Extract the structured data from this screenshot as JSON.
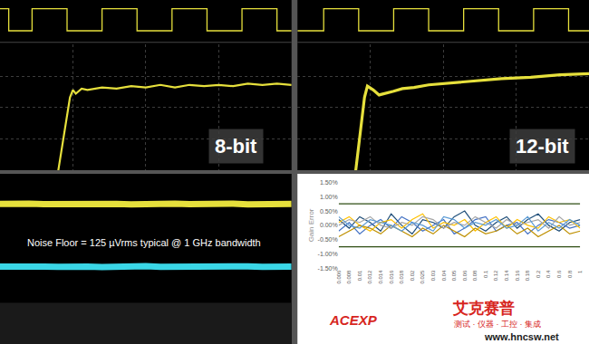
{
  "chart_data": [
    {
      "type": "line",
      "x": [
        0,
        0.3,
        1.1,
        2.3,
        3.5,
        4.7,
        5.9,
        7.1,
        8.3,
        9.5,
        10
      ],
      "series": [
        {
          "color": "#e6e03c",
          "line_style": "step",
          "values": [
            1,
            0,
            1,
            0,
            1,
            0,
            1,
            0,
            1,
            0,
            0
          ]
        }
      ],
      "xlim": [
        0,
        10
      ],
      "ylim": [
        -0.4,
        1.4
      ],
      "grid": false,
      "tick_labels": false
    },
    {
      "type": "line",
      "x": [
        2.0,
        2.1,
        2.2,
        2.3,
        2.4,
        2.5,
        2.6,
        2.8,
        3.0,
        3.5,
        4.0,
        4.5,
        5.0,
        5.5,
        6.0,
        6.5,
        7.0,
        7.5,
        8.0,
        8.5,
        9.0,
        9.5,
        10.0
      ],
      "series": [
        {
          "color": "#e6e03c",
          "values": [
            0,
            1.5,
            3.0,
            4.5,
            5.8,
            6.4,
            6.1,
            6.5,
            6.4,
            6.6,
            6.5,
            6.7,
            6.6,
            6.8,
            6.6,
            6.8,
            6.7,
            6.8,
            6.7,
            6.9,
            6.8,
            6.9,
            6.8
          ]
        }
      ],
      "xlim": [
        0,
        10
      ],
      "ylim": [
        0,
        10
      ],
      "xticks": [
        0,
        2.5,
        5,
        7.5,
        10
      ],
      "yticks": [
        0,
        2.5,
        5,
        7.5,
        10
      ],
      "grid": true,
      "tick_labels": false,
      "annotations": [
        "8-bit"
      ]
    },
    {
      "type": "line",
      "x": [
        0,
        0.9,
        2.1,
        3.3,
        4.5,
        5.7,
        6.9,
        8.1,
        9.3,
        10
      ],
      "series": [
        {
          "color": "#e6e03c",
          "line_style": "step",
          "values": [
            0,
            1,
            0,
            1,
            0,
            1,
            0,
            1,
            0,
            0
          ]
        }
      ],
      "xlim": [
        0,
        10
      ],
      "ylim": [
        -0.4,
        1.4
      ],
      "grid": false,
      "tick_labels": false
    },
    {
      "type": "line",
      "x": [
        2.0,
        2.1,
        2.2,
        2.3,
        2.4,
        2.6,
        2.8,
        3.0,
        3.3,
        3.6,
        4.0,
        4.5,
        5.0,
        5.5,
        6.0,
        7.0,
        8.0,
        9.0,
        10.0
      ],
      "series": [
        {
          "color": "#e6e03c",
          "values": [
            0,
            2.0,
            4.0,
            5.8,
            6.7,
            6.4,
            6.0,
            6.1,
            6.3,
            6.5,
            6.6,
            6.8,
            6.9,
            7.0,
            7.1,
            7.3,
            7.4,
            7.6,
            7.7
          ]
        }
      ],
      "xlim": [
        0,
        10
      ],
      "ylim": [
        0,
        10
      ],
      "xticks": [
        0,
        2.5,
        5,
        7.5,
        10
      ],
      "yticks": [
        0,
        2.5,
        5,
        7.5,
        10
      ],
      "grid": true,
      "tick_labels": false,
      "annotations": [
        "12-bit"
      ]
    },
    {
      "type": "line",
      "x": [
        0,
        0.5,
        1,
        1.5,
        2,
        2.5,
        3,
        3.5,
        4,
        4.5,
        5,
        5.5,
        6,
        6.5,
        7,
        7.5,
        8,
        8.5,
        9,
        9.5,
        10
      ],
      "series": [
        {
          "color": "#e6e03c",
          "values": [
            7.6,
            7.55,
            7.62,
            7.58,
            7.6,
            7.57,
            7.63,
            7.59,
            7.6,
            7.56,
            7.61,
            7.58,
            7.62,
            7.57,
            7.6,
            7.59,
            7.61,
            7.56,
            7.6,
            7.58,
            7.6
          ]
        },
        {
          "color": "#3ad6e6",
          "values": [
            2.6,
            2.63,
            2.57,
            2.61,
            2.58,
            2.62,
            2.6,
            2.56,
            2.61,
            2.59,
            2.63,
            2.58,
            2.6,
            2.62,
            2.57,
            2.61,
            2.59,
            2.62,
            2.58,
            2.6,
            2.61
          ]
        }
      ],
      "xlim": [
        0,
        10
      ],
      "ylim": [
        0,
        10
      ],
      "grid": false,
      "tick_labels": false,
      "annotations": [
        "Noise Floor = 125 µVrms typical @ 1 GHz bandwidth"
      ]
    },
    {
      "type": "line",
      "ylabel": "Gain Error",
      "categories": [
        "0.006",
        "0.008",
        "0.01",
        "0.012",
        "0.014",
        "0.016",
        "0.018",
        "0.02",
        "0.025",
        "0.03",
        "0.04",
        "0.05",
        "0.06",
        "0.08",
        "0.1",
        "0.12",
        "0.14",
        "0.16",
        "0.18",
        "0.2",
        "0.4",
        "0.6",
        "0.8",
        "1"
      ],
      "series": [
        {
          "color": "#1f4e79",
          "values": [
            0.2,
            -0.1,
            0.3,
            0.1,
            -0.2,
            0.4,
            0.0,
            -0.3,
            0.2,
            0.1,
            -0.1,
            0.3,
            0.5,
            0.0,
            -0.2,
            0.1,
            0.3,
            -0.1,
            0.2,
            0.4,
            0.0,
            -0.2,
            0.1,
            0.2
          ]
        },
        {
          "color": "#4472c4",
          "values": [
            -0.2,
            0.1,
            -0.3,
            0.0,
            0.2,
            -0.1,
            0.3,
            0.1,
            -0.2,
            0.0,
            0.2,
            -0.3,
            -0.1,
            0.2,
            0.3,
            -0.2,
            0.0,
            0.1,
            -0.3,
            0.0,
            0.2,
            0.1,
            -0.1,
            0.0
          ]
        },
        {
          "color": "#ffc000",
          "values": [
            0.1,
            0.3,
            0.0,
            -0.2,
            0.1,
            0.2,
            -0.1,
            0.2,
            0.4,
            -0.1,
            0.1,
            0.0,
            0.2,
            -0.2,
            0.1,
            0.3,
            -0.1,
            0.2,
            0.0,
            -0.1,
            0.3,
            0.1,
            0.2,
            -0.1
          ]
        },
        {
          "color": "#bf9000",
          "values": [
            -0.4,
            -0.2,
            0.0,
            -0.1,
            -0.3,
            0.0,
            -0.2,
            -0.4,
            -0.1,
            -0.3,
            0.0,
            -0.2,
            -0.4,
            -0.1,
            -0.3,
            -0.2,
            0.0,
            -0.3,
            -0.1,
            -0.4,
            -0.2,
            0.0,
            -0.3,
            -0.2
          ]
        },
        {
          "color": "#a5a5a5",
          "values": [
            0.0,
            0.2,
            0.1,
            0.3,
            0.0,
            -0.1,
            0.1,
            0.0,
            0.3,
            0.2,
            -0.1,
            0.1,
            0.0,
            0.3,
            0.1,
            -0.1,
            0.2,
            0.0,
            0.1,
            0.2,
            -0.1,
            0.3,
            0.0,
            0.1
          ]
        },
        {
          "color": "#5b9bd5",
          "values": [
            0.3,
            0.0,
            -0.1,
            0.2,
            0.1,
            0.0,
            -0.2,
            0.1,
            0.0,
            -0.2,
            0.3,
            0.2,
            -0.1,
            0.1,
            0.0,
            0.2,
            -0.1,
            0.0,
            0.3,
            -0.2,
            0.1,
            -0.1,
            0.2,
            0.0
          ]
        },
        {
          "color": "#2e4d12",
          "values": [
            0.75,
            0.75,
            0.75,
            0.75,
            0.75,
            0.75,
            0.75,
            0.75,
            0.75,
            0.75,
            0.75,
            0.75,
            0.75,
            0.75,
            0.75,
            0.75,
            0.75,
            0.75,
            0.75,
            0.75,
            0.75,
            0.75,
            0.75,
            0.75
          ]
        },
        {
          "color": "#2e4d12",
          "values": [
            -0.75,
            -0.75,
            -0.75,
            -0.75,
            -0.75,
            -0.75,
            -0.75,
            -0.75,
            -0.75,
            -0.75,
            -0.75,
            -0.75,
            -0.75,
            -0.75,
            -0.75,
            -0.75,
            -0.75,
            -0.75,
            -0.75,
            -0.75,
            -0.75,
            -0.75,
            -0.75,
            -0.75
          ]
        }
      ],
      "ylim": [
        -1.5,
        1.5
      ],
      "yticks": [
        {
          "value": -1.5,
          "label": "-1.50%"
        },
        {
          "value": -1,
          "label": "-1.00%"
        },
        {
          "value": -0.5,
          "label": "-0.50%"
        },
        {
          "value": 0,
          "label": "0.00%"
        },
        {
          "value": 0.5,
          "label": "0.50%"
        },
        {
          "value": 1,
          "label": "1.00%"
        },
        {
          "value": 1.5,
          "label": "1.50%"
        }
      ],
      "grid": false,
      "annotations": [
        "ACEXP",
        "艾克赛普",
        "测试 · 仪器 · 工控 · 集成",
        "www.hncsw.net"
      ]
    }
  ]
}
